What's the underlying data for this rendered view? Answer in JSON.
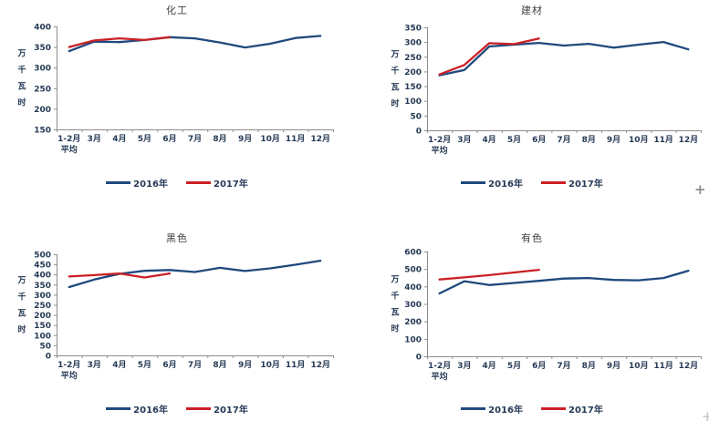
{
  "page": {
    "background": "#FFFFFF"
  },
  "colors": {
    "axis": "#8C8C8C",
    "tick_text": "#253A55",
    "title_text": "#404040",
    "series_2016": "#1F497D",
    "series_2017": "#CB2026"
  },
  "icons": {
    "plus_cursor": "+"
  },
  "chart_data": [
    {
      "type": "line",
      "title": "化工",
      "ylabel": "万千瓦时",
      "ylim": [
        150,
        400
      ],
      "ystep": 50,
      "grid": false,
      "legend_position": "bottom",
      "categories": [
        "1-2月\n平均",
        "3月",
        "4月",
        "5月",
        "6月",
        "7月",
        "8月",
        "9月",
        "10月",
        "11月",
        "12月"
      ],
      "series": [
        {
          "name": "2016年",
          "color": "#1F497D",
          "values": [
            340,
            363,
            362,
            367,
            374,
            371,
            361,
            349,
            358,
            372,
            377
          ]
        },
        {
          "name": "2017年",
          "color": "#CB2026",
          "values": [
            350,
            366,
            371,
            367,
            374
          ]
        }
      ]
    },
    {
      "type": "line",
      "title": "建材",
      "ylabel": "万千瓦时",
      "ylim": [
        0,
        350
      ],
      "ystep": 50,
      "grid": false,
      "legend_position": "bottom",
      "categories": [
        "1-2月\n平均",
        "3月",
        "4月",
        "5月",
        "6月",
        "7月",
        "8月",
        "9月",
        "10月",
        "11月",
        "12月"
      ],
      "series": [
        {
          "name": "2016年",
          "color": "#1F497D",
          "values": [
            187,
            205,
            285,
            291,
            297,
            288,
            294,
            281,
            291,
            300,
            275
          ]
        },
        {
          "name": "2017年",
          "color": "#CB2026",
          "values": [
            190,
            222,
            296,
            293,
            312
          ]
        }
      ]
    },
    {
      "type": "line",
      "title": "黑色",
      "ylabel": "万千瓦时",
      "ylim": [
        0,
        500
      ],
      "ystep": 50,
      "grid": false,
      "legend_position": "bottom",
      "categories": [
        "1-2月\n平均",
        "3月",
        "4月",
        "5月",
        "6月",
        "7月",
        "8月",
        "9月",
        "10月",
        "11月",
        "12月"
      ],
      "series": [
        {
          "name": "2016年",
          "color": "#1F497D",
          "values": [
            338,
            375,
            403,
            418,
            422,
            412,
            433,
            417,
            430,
            448,
            468
          ]
        },
        {
          "name": "2017年",
          "color": "#CB2026",
          "values": [
            390,
            397,
            405,
            385,
            405
          ]
        }
      ]
    },
    {
      "type": "line",
      "title": "有色",
      "ylabel": "万千瓦时",
      "ylim": [
        0,
        600
      ],
      "ystep": 100,
      "grid": false,
      "legend_position": "bottom",
      "categories": [
        "1-2月\n平均",
        "3月",
        "4月",
        "5月",
        "6月",
        "7月",
        "8月",
        "9月",
        "10月",
        "11月",
        "12月"
      ],
      "series": [
        {
          "name": "2016年",
          "color": "#1F497D",
          "values": [
            360,
            430,
            408,
            420,
            432,
            445,
            448,
            437,
            435,
            448,
            490
          ]
        },
        {
          "name": "2017年",
          "color": "#CB2026",
          "values": [
            440,
            452,
            465,
            480,
            495
          ]
        }
      ]
    }
  ]
}
